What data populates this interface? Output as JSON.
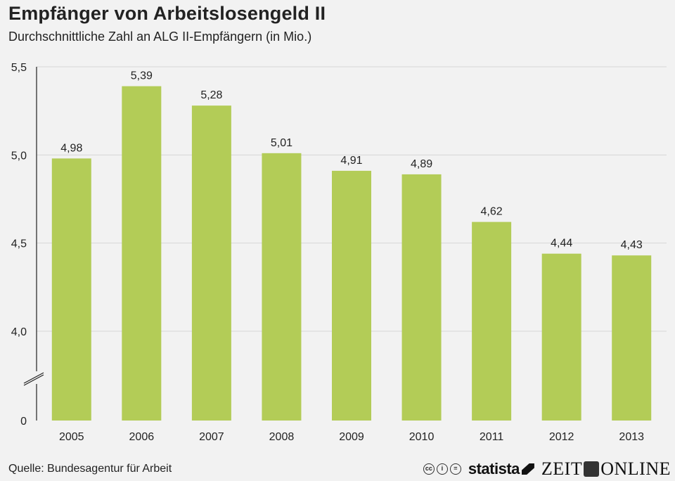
{
  "title": "Empfänger von Arbeitslosengeld II",
  "subtitle": "Durchschnittliche Zahl an ALG II-Empfängern (in Mio.)",
  "source": "Quelle: Bundesagentur für Arbeit",
  "logos": {
    "statista": "statista",
    "zeit_left": "ZEIT",
    "zeit_right": "ONLINE",
    "cc_icons": [
      "cc-icon",
      "by-icon",
      "nd-icon"
    ]
  },
  "colors": {
    "bar": "#b3cc57",
    "background": "#f2f2f2",
    "grid": "#d6d6d6"
  },
  "chart_data": {
    "type": "bar",
    "categories": [
      "2005",
      "2006",
      "2007",
      "2008",
      "2009",
      "2010",
      "2011",
      "2012",
      "2013"
    ],
    "values": [
      4.98,
      5.39,
      5.28,
      5.01,
      4.91,
      4.89,
      4.62,
      4.44,
      4.43
    ],
    "value_labels": [
      "4,98",
      "5,39",
      "5,28",
      "5,01",
      "4,91",
      "4,89",
      "4,62",
      "4,44",
      "4,43"
    ],
    "y_ticks": [
      {
        "value": 0,
        "label": "0"
      },
      {
        "value": 4.0,
        "label": "4,0"
      },
      {
        "value": 4.5,
        "label": "4,5"
      },
      {
        "value": 5.0,
        "label": "5,0"
      },
      {
        "value": 5.5,
        "label": "5,5"
      }
    ],
    "ylim": [
      0,
      5.5
    ],
    "axis_break": true,
    "grid": true,
    "xlabel": "",
    "ylabel": ""
  }
}
